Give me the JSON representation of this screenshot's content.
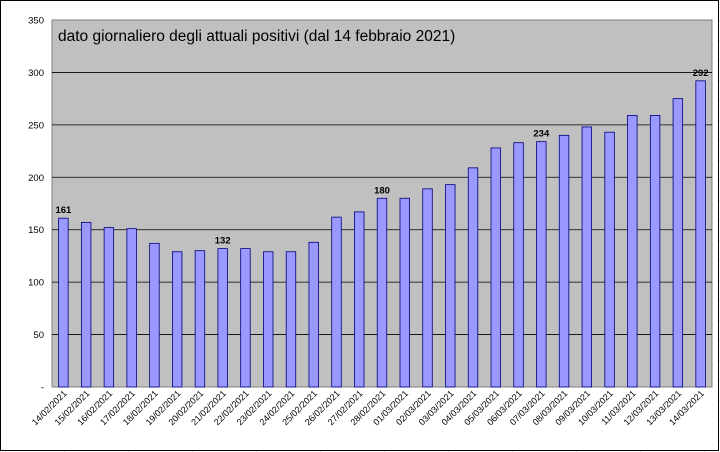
{
  "chart_data": {
    "type": "bar",
    "title": "dato giornaliero degli attuali positivi (dal 14 febbraio 2021)",
    "xlabel": "",
    "ylabel": "",
    "ylim": [
      0,
      350
    ],
    "y_ticks": [
      "-",
      "50",
      "100",
      "150",
      "200",
      "250",
      "300",
      "350"
    ],
    "grid": true,
    "legend": "none",
    "categories": [
      "14/02/2021",
      "15/02/2021",
      "16/02/2021",
      "17/02/2021",
      "18/02/2021",
      "19/02/2021",
      "20/02/2021",
      "21/02/2021",
      "22/02/2021",
      "23/02/2021",
      "24/02/2021",
      "25/02/2021",
      "26/02/2021",
      "27/02/2021",
      "28/02/2021",
      "01/03/2021",
      "02/03/2021",
      "03/03/2021",
      "04/03/2021",
      "05/03/2021",
      "06/03/2021",
      "07/03/2021",
      "08/03/2021",
      "09/03/2021",
      "10/03/2021",
      "11/03/2021",
      "12/03/2021",
      "13/03/2021",
      "14/03/2021"
    ],
    "values": [
      161,
      157,
      152,
      151,
      137,
      129,
      130,
      132,
      132,
      129,
      129,
      138,
      162,
      167,
      180,
      180,
      189,
      193,
      209,
      228,
      233,
      234,
      240,
      248,
      243,
      259,
      259,
      275,
      292
    ],
    "data_labels": [
      {
        "index": 0,
        "text": "161"
      },
      {
        "index": 7,
        "text": "132"
      },
      {
        "index": 14,
        "text": "180"
      },
      {
        "index": 21,
        "text": "234"
      },
      {
        "index": 28,
        "text": "292"
      }
    ],
    "colors": {
      "bar_fill": "#9999ff",
      "bar_stroke": "#000080",
      "plot_background": "#c0c0c0",
      "gridline": "#000000",
      "sheet_grid": "#dadcdd"
    }
  }
}
